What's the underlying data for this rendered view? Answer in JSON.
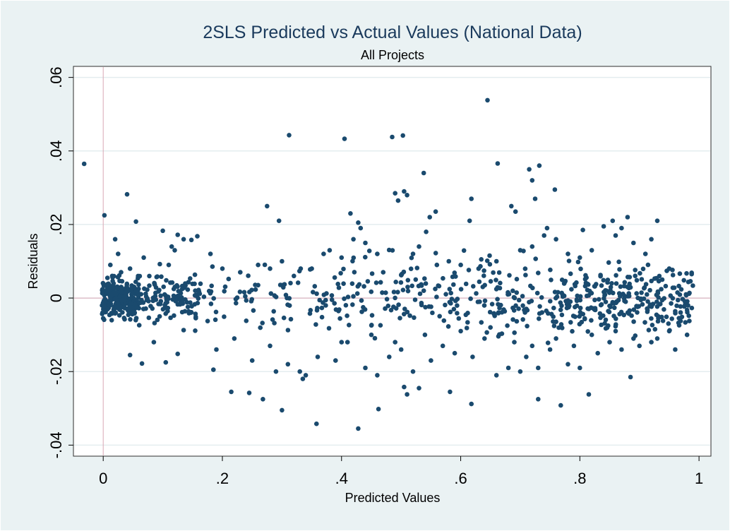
{
  "colors": {
    "background": "#eaf2f3",
    "plot_background": "#ffffff",
    "grid": "#e4edef",
    "reference_line": "#d9a7b4",
    "marker": "#1a4a6e",
    "title": "#1a3a5c"
  },
  "chart_data": {
    "type": "scatter",
    "title": "2SLS Predicted vs Actual Values (National Data)",
    "subtitle": "All Projects",
    "xlabel": "Predicted Values",
    "ylabel": "Residuals",
    "xlim": [
      -0.05,
      1.02
    ],
    "ylim": [
      -0.043,
      0.063
    ],
    "xticks": [
      0,
      0.2,
      0.4,
      0.6,
      0.8,
      1
    ],
    "xtick_labels": [
      "0",
      ".2",
      ".4",
      ".6",
      ".8",
      "1"
    ],
    "yticks": [
      -0.04,
      -0.02,
      0,
      0.02,
      0.04,
      0.06
    ],
    "ytick_labels": [
      "-.04",
      "-.02",
      "0",
      ".02",
      ".04",
      ".06"
    ],
    "grid": "horizontal",
    "reference_lines": {
      "x": 0,
      "y": 0
    },
    "legend": "none",
    "series": [
      {
        "points": [
          [
            -0.032,
            0.0365
          ],
          [
            0.002,
            0.0225
          ],
          [
            0.04,
            0.0282
          ],
          [
            0.055,
            0.0208
          ],
          [
            0.1,
            0.0183
          ],
          [
            0.125,
            0.0172
          ],
          [
            0.135,
            0.016
          ],
          [
            0.148,
            0.0158
          ],
          [
            0.158,
            0.0168
          ],
          [
            0.012,
            0.009
          ],
          [
            0.015,
            0.006
          ],
          [
            0.02,
            0.016
          ],
          [
            0.025,
            0.012
          ],
          [
            0.03,
            0.007
          ],
          [
            0.045,
            0.008
          ],
          [
            0.068,
            0.011
          ],
          [
            0.11,
            0.009
          ],
          [
            0.115,
            0.014
          ],
          [
            0.12,
            0.013
          ],
          [
            0.275,
            0.025
          ],
          [
            0.295,
            0.021
          ],
          [
            0.312,
            0.0443
          ],
          [
            0.405,
            0.0433
          ],
          [
            0.415,
            0.023
          ],
          [
            0.428,
            0.0205
          ],
          [
            0.432,
            0.019
          ],
          [
            0.485,
            0.0438
          ],
          [
            0.49,
            0.0285
          ],
          [
            0.495,
            0.0265
          ],
          [
            0.503,
            0.0442
          ],
          [
            0.505,
            0.029
          ],
          [
            0.51,
            0.028
          ],
          [
            0.538,
            0.034
          ],
          [
            0.558,
            0.0235
          ],
          [
            0.548,
            0.022
          ],
          [
            0.542,
            0.018
          ],
          [
            0.618,
            0.027
          ],
          [
            0.615,
            0.021
          ],
          [
            0.645,
            0.0538
          ],
          [
            0.662,
            0.0366
          ],
          [
            0.685,
            0.025
          ],
          [
            0.692,
            0.0235
          ],
          [
            0.715,
            0.035
          ],
          [
            0.72,
            0.032
          ],
          [
            0.732,
            0.036
          ],
          [
            0.725,
            0.027
          ],
          [
            0.745,
            0.019
          ],
          [
            0.758,
            0.0295
          ],
          [
            0.805,
            0.0185
          ],
          [
            0.84,
            0.0195
          ],
          [
            0.855,
            0.021
          ],
          [
            0.88,
            0.022
          ],
          [
            0.87,
            0.019
          ],
          [
            0.93,
            0.021
          ],
          [
            0.92,
            0.016
          ],
          [
            0.18,
            0.012
          ],
          [
            0.2,
            0.008
          ],
          [
            0.23,
            0.007
          ],
          [
            0.26,
            0.009
          ],
          [
            0.28,
            0.008
          ],
          [
            0.3,
            0.01
          ],
          [
            0.32,
            0.006
          ],
          [
            0.35,
            0.008
          ],
          [
            0.37,
            0.012
          ],
          [
            0.38,
            0.013
          ],
          [
            0.4,
            0.011
          ],
          [
            0.42,
            0.016
          ],
          [
            0.44,
            0.015
          ],
          [
            0.46,
            0.012
          ],
          [
            0.47,
            0.007
          ],
          [
            0.52,
            0.012
          ],
          [
            0.53,
            0.014
          ],
          [
            0.56,
            0.009
          ],
          [
            0.58,
            0.01
          ],
          [
            0.6,
            0.009
          ],
          [
            0.63,
            0.008
          ],
          [
            0.66,
            0.01
          ],
          [
            0.7,
            0.013
          ],
          [
            0.72,
            0.014
          ],
          [
            0.74,
            0.017
          ],
          [
            0.76,
            0.016
          ],
          [
            0.78,
            0.012
          ],
          [
            0.8,
            0.011
          ],
          [
            0.82,
            0.013
          ],
          [
            0.86,
            0.017
          ],
          [
            0.89,
            0.015
          ],
          [
            0.91,
            0.012
          ],
          [
            0.95,
            0.008
          ],
          [
            0.045,
            -0.0155
          ],
          [
            0.065,
            -0.0178
          ],
          [
            0.085,
            -0.012
          ],
          [
            0.105,
            -0.0175
          ],
          [
            0.125,
            -0.0152
          ],
          [
            0.185,
            -0.0195
          ],
          [
            0.215,
            -0.0255
          ],
          [
            0.245,
            -0.0258
          ],
          [
            0.268,
            -0.0275
          ],
          [
            0.3,
            -0.0305
          ],
          [
            0.335,
            -0.022
          ],
          [
            0.358,
            -0.0342
          ],
          [
            0.428,
            -0.0355
          ],
          [
            0.462,
            -0.0302
          ],
          [
            0.505,
            -0.0242
          ],
          [
            0.51,
            -0.0262
          ],
          [
            0.53,
            -0.0245
          ],
          [
            0.582,
            -0.0255
          ],
          [
            0.618,
            -0.0288
          ],
          [
            0.73,
            -0.0275
          ],
          [
            0.768,
            -0.0292
          ],
          [
            0.815,
            -0.0262
          ],
          [
            0.885,
            -0.0215
          ],
          [
            0.19,
            -0.014
          ],
          [
            0.22,
            -0.011
          ],
          [
            0.25,
            -0.017
          ],
          [
            0.28,
            -0.013
          ],
          [
            0.31,
            -0.018
          ],
          [
            0.33,
            -0.02
          ],
          [
            0.36,
            -0.016
          ],
          [
            0.39,
            -0.017
          ],
          [
            0.41,
            -0.012
          ],
          [
            0.44,
            -0.019
          ],
          [
            0.46,
            -0.021
          ],
          [
            0.48,
            -0.016
          ],
          [
            0.5,
            -0.014
          ],
          [
            0.52,
            -0.02
          ],
          [
            0.55,
            -0.017
          ],
          [
            0.57,
            -0.013
          ],
          [
            0.59,
            -0.015
          ],
          [
            0.62,
            -0.016
          ],
          [
            0.64,
            -0.011
          ],
          [
            0.66,
            -0.021
          ],
          [
            0.68,
            -0.019
          ],
          [
            0.7,
            -0.02
          ],
          [
            0.71,
            -0.016
          ],
          [
            0.73,
            -0.019
          ],
          [
            0.75,
            -0.014
          ],
          [
            0.78,
            -0.018
          ],
          [
            0.8,
            -0.019
          ],
          [
            0.83,
            -0.015
          ],
          [
            0.85,
            -0.012
          ],
          [
            0.87,
            -0.014
          ],
          [
            0.9,
            -0.013
          ],
          [
            0.93,
            -0.011
          ],
          [
            0.96,
            -0.014
          ],
          [
            0.29,
            -0.02
          ],
          [
            0.34,
            -0.021
          ],
          [
            0.4,
            -0.012
          ],
          [
            0.45,
            -0.01
          ],
          [
            0.49,
            -0.012
          ],
          [
            0.54,
            -0.01
          ],
          [
            0.6,
            -0.009
          ],
          [
            0.65,
            -0.008
          ],
          [
            0.69,
            -0.012
          ],
          [
            0.72,
            -0.013
          ],
          [
            0.76,
            -0.011
          ],
          [
            0.79,
            -0.013
          ],
          [
            0.82,
            -0.01
          ],
          [
            0.86,
            -0.009
          ],
          [
            0.89,
            -0.011
          ],
          [
            0.92,
            -0.012
          ],
          [
            0.95,
            -0.009
          ],
          [
            0.98,
            -0.01
          ]
        ]
      }
    ]
  }
}
